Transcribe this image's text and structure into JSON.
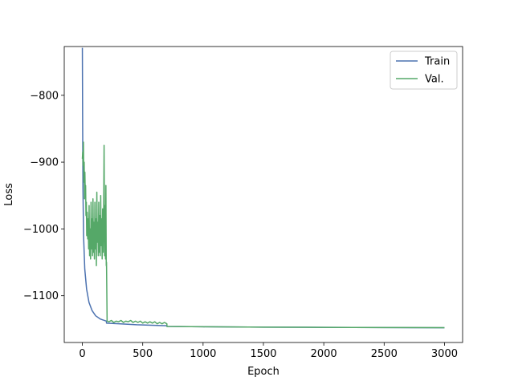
{
  "chart_data": {
    "type": "line",
    "title": "",
    "xlabel": "Epoch",
    "ylabel": "Loss",
    "xlim": [
      -150,
      3150
    ],
    "ylim": [
      -1170,
      -727
    ],
    "xticks": [
      0,
      500,
      1000,
      1500,
      2000,
      2500,
      3000
    ],
    "yticks": [
      -1100,
      -1000,
      -900,
      -800
    ],
    "legend_position": "top-right",
    "grid": false,
    "series": [
      {
        "name": "Train",
        "color": "#4c72b0",
        "points": [
          [
            0,
            -729
          ],
          [
            2,
            -830
          ],
          [
            5,
            -940
          ],
          [
            10,
            -1010
          ],
          [
            20,
            -1060
          ],
          [
            35,
            -1090
          ],
          [
            55,
            -1110
          ],
          [
            80,
            -1122
          ],
          [
            110,
            -1130
          ],
          [
            150,
            -1135
          ],
          [
            199,
            -1138
          ],
          [
            200,
            -1141
          ],
          [
            300,
            -1142
          ],
          [
            450,
            -1143.5
          ],
          [
            700,
            -1145
          ],
          [
            701,
            -1146
          ],
          [
            1000,
            -1146.5
          ],
          [
            1500,
            -1147
          ],
          [
            2000,
            -1147.3
          ],
          [
            2500,
            -1147.6
          ],
          [
            3000,
            -1148
          ]
        ]
      },
      {
        "name": "Val.",
        "color": "#55a868",
        "points": [
          [
            0,
            -895
          ],
          [
            3,
            -885
          ],
          [
            6,
            -905
          ],
          [
            9,
            -870
          ],
          [
            12,
            -930
          ],
          [
            15,
            -900
          ],
          [
            18,
            -955
          ],
          [
            21,
            -915
          ],
          [
            24,
            -945
          ],
          [
            27,
            -935
          ],
          [
            30,
            -980
          ],
          [
            33,
            -960
          ],
          [
            36,
            -1010
          ],
          [
            40,
            -975
          ],
          [
            44,
            -1015
          ],
          [
            48,
            -985
          ],
          [
            52,
            -1030
          ],
          [
            56,
            -965
          ],
          [
            60,
            -1040
          ],
          [
            64,
            -1000
          ],
          [
            68,
            -1045
          ],
          [
            72,
            -960
          ],
          [
            76,
            -1030
          ],
          [
            80,
            -985
          ],
          [
            84,
            -1040
          ],
          [
            88,
            -955
          ],
          [
            92,
            -1035
          ],
          [
            96,
            -990
          ],
          [
            100,
            -1045
          ],
          [
            104,
            -960
          ],
          [
            108,
            -1030
          ],
          [
            112,
            -985
          ],
          [
            116,
            -1055
          ],
          [
            120,
            -945
          ],
          [
            124,
            -1020
          ],
          [
            128,
            -990
          ],
          [
            132,
            -1040
          ],
          [
            136,
            -960
          ],
          [
            140,
            -1035
          ],
          [
            144,
            -980
          ],
          [
            148,
            -1040
          ],
          [
            152,
            -950
          ],
          [
            156,
            -1025
          ],
          [
            160,
            -985
          ],
          [
            164,
            -1045
          ],
          [
            168,
            -970
          ],
          [
            172,
            -1035
          ],
          [
            176,
            -990
          ],
          [
            180,
            -875
          ],
          [
            184,
            -1040
          ],
          [
            188,
            -965
          ],
          [
            192,
            -1045
          ],
          [
            195,
            -935
          ],
          [
            198,
            -1055
          ],
          [
            200,
            -1050
          ],
          [
            205,
            -1138
          ],
          [
            220,
            -1139
          ],
          [
            240,
            -1137
          ],
          [
            260,
            -1140
          ],
          [
            280,
            -1138
          ],
          [
            300,
            -1139
          ],
          [
            320,
            -1137
          ],
          [
            340,
            -1140
          ],
          [
            360,
            -1138
          ],
          [
            380,
            -1139
          ],
          [
            400,
            -1137
          ],
          [
            420,
            -1140
          ],
          [
            440,
            -1138
          ],
          [
            460,
            -1140
          ],
          [
            480,
            -1138
          ],
          [
            500,
            -1141
          ],
          [
            520,
            -1139
          ],
          [
            540,
            -1141
          ],
          [
            560,
            -1139
          ],
          [
            580,
            -1141
          ],
          [
            600,
            -1139
          ],
          [
            620,
            -1142
          ],
          [
            640,
            -1140
          ],
          [
            660,
            -1142
          ],
          [
            680,
            -1140
          ],
          [
            700,
            -1142
          ],
          [
            701,
            -1146
          ],
          [
            1000,
            -1146.5
          ],
          [
            1500,
            -1147
          ],
          [
            2000,
            -1147.3
          ],
          [
            2500,
            -1147.6
          ],
          [
            3000,
            -1147.8
          ]
        ]
      }
    ]
  }
}
